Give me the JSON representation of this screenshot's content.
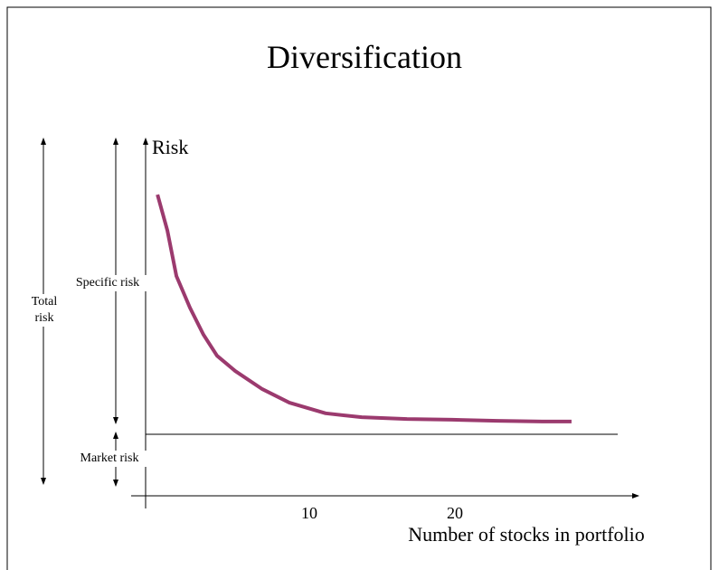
{
  "chart_data": {
    "type": "line",
    "title": "Diversification",
    "y_label": "Risk",
    "x_label": "Number of stocks in portfolio",
    "annotations": {
      "specific": "Specific risk",
      "total": "Total risk",
      "market": "Market risk"
    },
    "x": [
      -0.43,
      0.25,
      0.87,
      1.8,
      2.73,
      3.66,
      4.91,
      6.77,
      8.63,
      11.12,
      13.6,
      16.71,
      19.81,
      22.92,
      26.02,
      28.01
    ],
    "series": [
      {
        "name": "Risk",
        "color": "#9b3a6e",
        "values": [
          84.7,
          74.6,
          61.8,
          52.9,
          45.3,
          39.4,
          35.1,
          30.0,
          26.2,
          23.2,
          22.1,
          21.6,
          21.4,
          21.1,
          20.9,
          20.9
        ]
      }
    ],
    "market_risk_level": 17.3,
    "xlim": [
      -2.24,
      32.55
    ],
    "xticks": [
      10,
      20
    ],
    "ylim": [
      0,
      100
    ]
  }
}
